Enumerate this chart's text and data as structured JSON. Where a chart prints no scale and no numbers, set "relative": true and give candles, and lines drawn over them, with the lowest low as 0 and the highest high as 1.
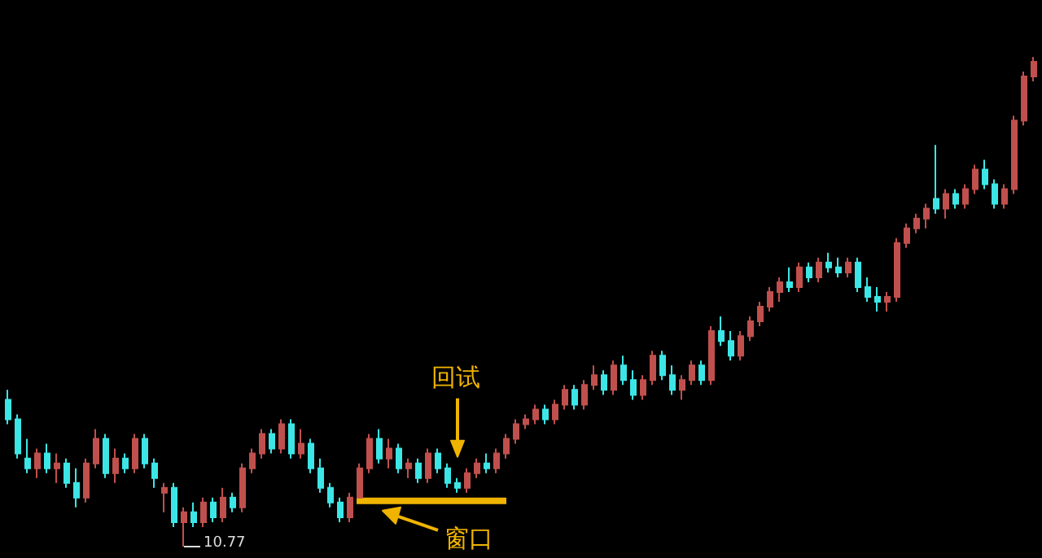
{
  "chart_data": {
    "type": "candlestick",
    "relative": true,
    "colors": [
      "#3ce6e6",
      "#3ce6e6",
      "#3ce6e6",
      "#c0504d",
      "#3ce6e6",
      "#c0504d",
      "#3ce6e6",
      "#3ce6e6",
      "#c0504d",
      "#c0504d",
      "#3ce6e6",
      "#c0504d",
      "#3ce6e6",
      "#c0504d",
      "#3ce6e6",
      "#3ce6e6",
      "#c0504d",
      "#3ce6e6",
      "#c0504d",
      "#3ce6e6",
      "#c0504d",
      "#3ce6e6",
      "#c0504d",
      "#3ce6e6",
      "#c0504d",
      "#c0504d",
      "#c0504d",
      "#3ce6e6",
      "#c0504d",
      "#3ce6e6",
      "#c0504d",
      "#3ce6e6",
      "#3ce6e6",
      "#3ce6e6",
      "#3ce6e6",
      "#c0504d",
      "#c0504d",
      "#c0504d",
      "#3ce6e6",
      "#c0504d",
      "#3ce6e6",
      "#c0504d",
      "#3ce6e6",
      "#c0504d",
      "#3ce6e6",
      "#3ce6e6",
      "#3ce6e6",
      "#c0504d",
      "#c0504d",
      "#3ce6e6",
      "#c0504d",
      "#c0504d",
      "#c0504d",
      "#c0504d",
      "#c0504d",
      "#3ce6e6",
      "#c0504d",
      "#c0504d",
      "#3ce6e6",
      "#c0504d",
      "#c0504d",
      "#3ce6e6",
      "#c0504d",
      "#3ce6e6",
      "#3ce6e6",
      "#c0504d",
      "#c0504d",
      "#3ce6e6",
      "#3ce6e6",
      "#c0504d",
      "#c0504d",
      "#3ce6e6",
      "#c0504d",
      "#3ce6e6",
      "#3ce6e6",
      "#c0504d",
      "#c0504d",
      "#c0504d",
      "#c0504d",
      "#c0504d",
      "#3ce6e6",
      "#c0504d",
      "#3ce6e6",
      "#c0504d",
      "#3ce6e6",
      "#3ce6e6",
      "#c0504d",
      "#3ce6e6",
      "#3ce6e6",
      "#3ce6e6",
      "#c0504d",
      "#c0504d",
      "#c0504d",
      "#c0504d",
      "#c0504d",
      "#3ce6e6",
      "#c0504d",
      "#3ce6e6",
      "#c0504d",
      "#c0504d",
      "#3ce6e6",
      "#3ce6e6",
      "#c0504d",
      "#c0504d",
      "#c0504d",
      "#c0504d"
    ],
    "annotations": [
      "回试",
      "窗口",
      "10.77"
    ],
    "categories": [
      null,
      null,
      null,
      null,
      null,
      null,
      null,
      null,
      null,
      null,
      null,
      null,
      null,
      null,
      null,
      null,
      null,
      null,
      null,
      null,
      null,
      null,
      null,
      null,
      null,
      null,
      null,
      null,
      null,
      null,
      null,
      null,
      null,
      null,
      null,
      null,
      null,
      null,
      null,
      null,
      null,
      null,
      null,
      null,
      null,
      null,
      null,
      null,
      null,
      null,
      null,
      null,
      null,
      null,
      null,
      null,
      null,
      null,
      null,
      null,
      null,
      null,
      null,
      null,
      null,
      null,
      null,
      null,
      null,
      null,
      null,
      null,
      null,
      null,
      null,
      null,
      null,
      null,
      null,
      null,
      null,
      null,
      null,
      null,
      null,
      null,
      null,
      null,
      null,
      null,
      null,
      null,
      null,
      null,
      null,
      null,
      null,
      null,
      null,
      null,
      null,
      null,
      null,
      null,
      null,
      null
    ],
    "ohlc": [
      [
        0.3,
        0.32,
        0.25,
        0.26
      ],
      [
        0.26,
        0.27,
        0.18,
        0.19
      ],
      [
        0.18,
        0.22,
        0.15,
        0.16
      ],
      [
        0.16,
        0.2,
        0.14,
        0.19
      ],
      [
        0.19,
        0.21,
        0.15,
        0.16
      ],
      [
        0.16,
        0.19,
        0.13,
        0.17
      ],
      [
        0.17,
        0.18,
        0.12,
        0.13
      ],
      [
        0.13,
        0.16,
        0.08,
        0.1
      ],
      [
        0.1,
        0.18,
        0.09,
        0.17
      ],
      [
        0.17,
        0.24,
        0.16,
        0.22
      ],
      [
        0.22,
        0.23,
        0.14,
        0.15
      ],
      [
        0.15,
        0.2,
        0.13,
        0.18
      ],
      [
        0.18,
        0.19,
        0.15,
        0.16
      ],
      [
        0.16,
        0.23,
        0.15,
        0.22
      ],
      [
        0.22,
        0.23,
        0.16,
        0.17
      ],
      [
        0.17,
        0.18,
        0.12,
        0.14
      ],
      [
        0.11,
        0.13,
        0.07,
        0.12
      ],
      [
        0.12,
        0.13,
        0.04,
        0.05
      ],
      [
        0.05,
        0.08,
        0.0,
        0.07
      ],
      [
        0.07,
        0.09,
        0.04,
        0.05
      ],
      [
        0.05,
        0.1,
        0.04,
        0.09
      ],
      [
        0.09,
        0.1,
        0.05,
        0.06
      ],
      [
        0.06,
        0.12,
        0.05,
        0.1
      ],
      [
        0.1,
        0.11,
        0.07,
        0.08
      ],
      [
        0.08,
        0.17,
        0.07,
        0.16
      ],
      [
        0.16,
        0.2,
        0.15,
        0.19
      ],
      [
        0.19,
        0.24,
        0.18,
        0.23
      ],
      [
        0.23,
        0.24,
        0.19,
        0.2
      ],
      [
        0.2,
        0.26,
        0.19,
        0.25
      ],
      [
        0.25,
        0.26,
        0.18,
        0.19
      ],
      [
        0.19,
        0.24,
        0.18,
        0.21
      ],
      [
        0.21,
        0.22,
        0.15,
        0.16
      ],
      [
        0.16,
        0.18,
        0.11,
        0.12
      ],
      [
        0.12,
        0.13,
        0.08,
        0.09
      ],
      [
        0.09,
        0.1,
        0.05,
        0.06
      ],
      [
        0.06,
        0.11,
        0.05,
        0.1
      ],
      [
        0.1,
        0.17,
        0.1,
        0.16
      ],
      [
        0.16,
        0.23,
        0.15,
        0.22
      ],
      [
        0.22,
        0.24,
        0.17,
        0.18
      ],
      [
        0.18,
        0.22,
        0.16,
        0.2
      ],
      [
        0.2,
        0.21,
        0.15,
        0.16
      ],
      [
        0.16,
        0.18,
        0.14,
        0.17
      ],
      [
        0.17,
        0.18,
        0.13,
        0.14
      ],
      [
        0.14,
        0.2,
        0.13,
        0.19
      ],
      [
        0.19,
        0.2,
        0.15,
        0.16
      ],
      [
        0.16,
        0.17,
        0.12,
        0.13
      ],
      [
        0.13,
        0.14,
        0.11,
        0.12
      ],
      [
        0.12,
        0.16,
        0.11,
        0.15
      ],
      [
        0.15,
        0.18,
        0.14,
        0.17
      ],
      [
        0.17,
        0.19,
        0.15,
        0.16
      ],
      [
        0.16,
        0.2,
        0.15,
        0.19
      ],
      [
        0.19,
        0.23,
        0.18,
        0.22
      ],
      [
        0.22,
        0.26,
        0.21,
        0.25
      ],
      [
        0.25,
        0.27,
        0.24,
        0.26
      ],
      [
        0.26,
        0.29,
        0.25,
        0.28
      ],
      [
        0.28,
        0.29,
        0.25,
        0.26
      ],
      [
        0.26,
        0.3,
        0.25,
        0.29
      ],
      [
        0.29,
        0.33,
        0.28,
        0.32
      ],
      [
        0.32,
        0.33,
        0.28,
        0.29
      ],
      [
        0.29,
        0.34,
        0.28,
        0.33
      ],
      [
        0.33,
        0.37,
        0.32,
        0.35
      ],
      [
        0.35,
        0.36,
        0.31,
        0.32
      ],
      [
        0.32,
        0.38,
        0.31,
        0.37
      ],
      [
        0.37,
        0.39,
        0.33,
        0.34
      ],
      [
        0.34,
        0.36,
        0.3,
        0.31
      ],
      [
        0.31,
        0.35,
        0.3,
        0.34
      ],
      [
        0.34,
        0.4,
        0.33,
        0.39
      ],
      [
        0.39,
        0.4,
        0.34,
        0.35
      ],
      [
        0.35,
        0.37,
        0.31,
        0.32
      ],
      [
        0.32,
        0.35,
        0.3,
        0.34
      ],
      [
        0.34,
        0.38,
        0.33,
        0.37
      ],
      [
        0.37,
        0.38,
        0.33,
        0.34
      ],
      [
        0.34,
        0.45,
        0.33,
        0.44
      ],
      [
        0.44,
        0.47,
        0.41,
        0.42
      ],
      [
        0.42,
        0.44,
        0.38,
        0.39
      ],
      [
        0.39,
        0.44,
        0.38,
        0.43
      ],
      [
        0.43,
        0.47,
        0.42,
        0.46
      ],
      [
        0.46,
        0.5,
        0.45,
        0.49
      ],
      [
        0.49,
        0.53,
        0.48,
        0.52
      ],
      [
        0.52,
        0.55,
        0.5,
        0.54
      ],
      [
        0.54,
        0.57,
        0.52,
        0.53
      ],
      [
        0.53,
        0.58,
        0.52,
        0.57
      ],
      [
        0.57,
        0.58,
        0.54,
        0.55
      ],
      [
        0.55,
        0.59,
        0.54,
        0.58
      ],
      [
        0.58,
        0.6,
        0.56,
        0.57
      ],
      [
        0.57,
        0.59,
        0.55,
        0.56
      ],
      [
        0.56,
        0.59,
        0.55,
        0.58
      ],
      [
        0.58,
        0.59,
        0.52,
        0.53
      ],
      [
        0.53,
        0.55,
        0.5,
        0.51
      ],
      [
        0.51,
        0.53,
        0.48,
        0.5
      ],
      [
        0.5,
        0.52,
        0.48,
        0.51
      ],
      [
        0.51,
        0.63,
        0.5,
        0.62
      ],
      [
        0.62,
        0.66,
        0.61,
        0.65
      ],
      [
        0.65,
        0.68,
        0.64,
        0.67
      ],
      [
        0.67,
        0.7,
        0.65,
        0.69
      ],
      [
        0.71,
        0.82,
        0.68,
        0.69
      ],
      [
        0.69,
        0.73,
        0.67,
        0.72
      ],
      [
        0.72,
        0.73,
        0.69,
        0.7
      ],
      [
        0.7,
        0.74,
        0.69,
        0.73
      ],
      [
        0.73,
        0.78,
        0.72,
        0.77
      ],
      [
        0.77,
        0.79,
        0.73,
        0.74
      ],
      [
        0.74,
        0.75,
        0.69,
        0.7
      ],
      [
        0.7,
        0.74,
        0.69,
        0.73
      ],
      [
        0.73,
        0.88,
        0.72,
        0.87
      ],
      [
        0.87,
        0.97,
        0.86,
        0.96
      ],
      [
        0.96,
        1.0,
        0.95,
        0.99
      ]
    ]
  }
}
